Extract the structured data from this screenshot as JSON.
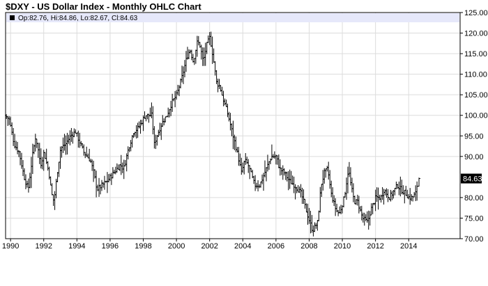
{
  "chart_data": {
    "type": "ohlc",
    "title": "$DXY - US Dollar Index - Monthly OHLC Chart",
    "info_bar": {
      "symbol_swatch_color": "#000000",
      "text": "Op:82.76, Hi:84.86, Lo:82.67, Cl:84.63"
    },
    "last_value": {
      "label": "84.63",
      "value": 84.63,
      "bg_color": "#000000"
    },
    "y_axis": {
      "position": "right",
      "ylim": [
        70,
        125
      ],
      "tick_labels": [
        {
          "label": "125.00",
          "value": 125
        },
        {
          "label": "120.00",
          "value": 120
        },
        {
          "label": "115.00",
          "value": 115
        },
        {
          "label": "110.00",
          "value": 110
        },
        {
          "label": "105.00",
          "value": 105
        },
        {
          "label": "100.00",
          "value": 100
        },
        {
          "label": "95.00",
          "value": 95
        },
        {
          "label": "90.00",
          "value": 90
        },
        {
          "label": "80.00",
          "value": 80
        },
        {
          "label": "75.00",
          "value": 75
        },
        {
          "label": "70.00",
          "value": 70
        }
      ]
    },
    "x_axis": {
      "xlim": [
        1989.7,
        2017.1
      ],
      "tick_labels": [
        {
          "label": "1990",
          "value": 1990
        },
        {
          "label": "1992",
          "value": 1992
        },
        {
          "label": "1994",
          "value": 1994
        },
        {
          "label": "1996",
          "value": 1996
        },
        {
          "label": "1998",
          "value": 1998
        },
        {
          "label": "2000",
          "value": 2000
        },
        {
          "label": "2002",
          "value": 2002
        },
        {
          "label": "2004",
          "value": 2004
        },
        {
          "label": "2006",
          "value": 2006
        },
        {
          "label": "2008",
          "value": 2008
        },
        {
          "label": "2010",
          "value": 2010
        },
        {
          "label": "2012",
          "value": 2012
        },
        {
          "label": "2014",
          "value": 2014
        }
      ]
    },
    "grid": true,
    "colors": {
      "grid": "#dcdcdc",
      "bars": "#000000",
      "info_bar_bg": "#e6e8fa",
      "axis": "#000000"
    },
    "series_anchor_path": [
      [
        1989.75,
        100
      ],
      [
        1990.0,
        99
      ],
      [
        1990.3,
        93
      ],
      [
        1990.6,
        91
      ],
      [
        1990.9,
        85
      ],
      [
        1991.15,
        82
      ],
      [
        1991.4,
        90
      ],
      [
        1991.6,
        95
      ],
      [
        1991.9,
        88
      ],
      [
        1992.1,
        91
      ],
      [
        1992.4,
        86
      ],
      [
        1992.55,
        81
      ],
      [
        1992.7,
        79
      ],
      [
        1992.9,
        86
      ],
      [
        1993.1,
        92
      ],
      [
        1993.4,
        93
      ],
      [
        1993.7,
        95
      ],
      [
        1994.0,
        96
      ],
      [
        1994.2,
        94
      ],
      [
        1994.5,
        91
      ],
      [
        1994.9,
        89
      ],
      [
        1995.1,
        86
      ],
      [
        1995.3,
        82
      ],
      [
        1995.6,
        83
      ],
      [
        1995.9,
        84
      ],
      [
        1996.3,
        86
      ],
      [
        1996.7,
        88
      ],
      [
        1996.9,
        87
      ],
      [
        1997.2,
        92
      ],
      [
        1997.5,
        96
      ],
      [
        1997.8,
        97
      ],
      [
        1998.2,
        100
      ],
      [
        1998.6,
        100
      ],
      [
        1998.75,
        93
      ],
      [
        1998.9,
        95
      ],
      [
        1999.2,
        98
      ],
      [
        1999.5,
        100
      ],
      [
        1999.8,
        103
      ],
      [
        2000.1,
        105
      ],
      [
        2000.4,
        109
      ],
      [
        2000.7,
        114
      ],
      [
        2000.9,
        116
      ],
      [
        2001.1,
        113
      ],
      [
        2001.35,
        118
      ],
      [
        2001.5,
        117
      ],
      [
        2001.7,
        113
      ],
      [
        2001.9,
        117
      ],
      [
        2002.1,
        119
      ],
      [
        2002.3,
        114
      ],
      [
        2002.5,
        108
      ],
      [
        2002.7,
        107
      ],
      [
        2002.9,
        104
      ],
      [
        2003.2,
        100
      ],
      [
        2003.5,
        95
      ],
      [
        2003.8,
        90
      ],
      [
        2004.0,
        86
      ],
      [
        2004.2,
        89
      ],
      [
        2004.4,
        88
      ],
      [
        2004.8,
        83
      ],
      [
        2005.1,
        83
      ],
      [
        2005.4,
        86
      ],
      [
        2005.8,
        90
      ],
      [
        2006.1,
        90
      ],
      [
        2006.3,
        87
      ],
      [
        2006.6,
        86
      ],
      [
        2006.9,
        84
      ],
      [
        2007.2,
        83
      ],
      [
        2007.6,
        81
      ],
      [
        2007.9,
        77
      ],
      [
        2008.2,
        73
      ],
      [
        2008.3,
        72
      ],
      [
        2008.6,
        74
      ],
      [
        2008.8,
        83
      ],
      [
        2009.0,
        86
      ],
      [
        2009.2,
        87
      ],
      [
        2009.4,
        81
      ],
      [
        2009.7,
        77
      ],
      [
        2009.9,
        76
      ],
      [
        2010.2,
        80
      ],
      [
        2010.45,
        87
      ],
      [
        2010.6,
        83
      ],
      [
        2010.8,
        79
      ],
      [
        2011.0,
        79
      ],
      [
        2011.3,
        75
      ],
      [
        2011.6,
        74
      ],
      [
        2011.8,
        77
      ],
      [
        2012.1,
        80
      ],
      [
        2012.4,
        80
      ],
      [
        2012.6,
        82
      ],
      [
        2012.9,
        80
      ],
      [
        2013.1,
        81
      ],
      [
        2013.4,
        83
      ],
      [
        2013.6,
        82
      ],
      [
        2013.9,
        81
      ],
      [
        2014.1,
        80
      ],
      [
        2014.3,
        80
      ],
      [
        2014.5,
        81
      ],
      [
        2014.58,
        82.76
      ],
      [
        2014.62,
        84.63
      ]
    ],
    "last_bar": {
      "open": 82.76,
      "high": 84.86,
      "low": 82.67,
      "close": 84.63
    }
  }
}
